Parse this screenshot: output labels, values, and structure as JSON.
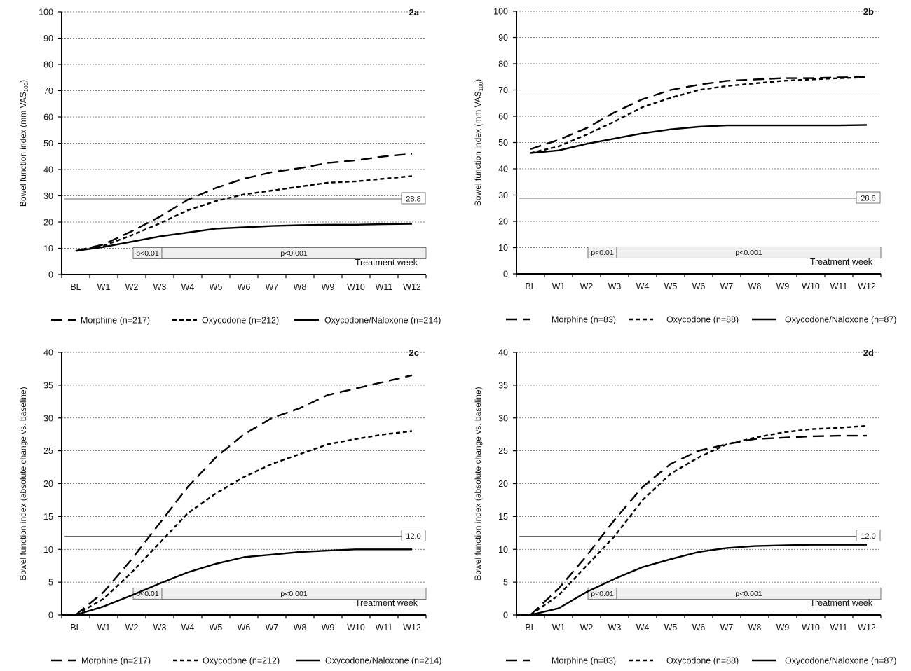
{
  "chart_data": [
    {
      "panel_label": "2a",
      "type": "line",
      "ylabel": "Bowel function index (mm VAS",
      "ylabel_sub": "100",
      "ylabel_suffix": ")",
      "xlabel": "Treatment week",
      "categories": [
        "BL",
        "W1",
        "W2",
        "W3",
        "W4",
        "W5",
        "W6",
        "W7",
        "W8",
        "W9",
        "W10",
        "W11",
        "W12"
      ],
      "ylim": [
        0,
        100
      ],
      "yticks": [
        0,
        10,
        20,
        30,
        40,
        50,
        60,
        70,
        80,
        90,
        100
      ],
      "grid": "horizontal dotted",
      "threshold": {
        "value": 28.8,
        "label": "28.8"
      },
      "pvalues": {
        "first": "p<0.01",
        "second": "p<0.001",
        "first_start": 2.0,
        "split": 3.0
      },
      "series": [
        {
          "name": "Morphine (n=217)",
          "style": "long-dash",
          "values": [
            9,
            11.5,
            16.5,
            22,
            28.5,
            33,
            36.5,
            39,
            40.5,
            42.5,
            43.5,
            45,
            46
          ]
        },
        {
          "name": "Oxycodone (n=212)",
          "style": "short-dash",
          "values": [
            9,
            11,
            15,
            19.5,
            24.5,
            28,
            30.5,
            32,
            33.5,
            35,
            35.5,
            36.5,
            37.5
          ]
        },
        {
          "name": "Oxycodone/Naloxone (n=214)",
          "style": "solid",
          "values": [
            9,
            10.5,
            12.5,
            14.5,
            16,
            17.5,
            18,
            18.5,
            18.8,
            19,
            19,
            19.2,
            19.3
          ]
        }
      ]
    },
    {
      "panel_label": "2b",
      "type": "line",
      "ylabel": "Bowel function index (mm VAS",
      "ylabel_sub": "100",
      "ylabel_suffix": ")",
      "xlabel": "Treatment week",
      "categories": [
        "BL",
        "W1",
        "W2",
        "W3",
        "W4",
        "W5",
        "W6",
        "W7",
        "W8",
        "W9",
        "W10",
        "W11",
        "W12"
      ],
      "ylim": [
        0,
        100
      ],
      "yticks": [
        0,
        10,
        20,
        30,
        40,
        50,
        60,
        70,
        80,
        90,
        100
      ],
      "grid": "horizontal dotted",
      "threshold": {
        "value": 28.8,
        "label": "28.8"
      },
      "pvalues": {
        "first": "p<0.01",
        "second": "p<0.001",
        "first_start": 2.0,
        "split": 3.0
      },
      "series": [
        {
          "name": "Morphine (n=83)",
          "style": "long-dash",
          "values": [
            47.5,
            51,
            55.5,
            61.5,
            66.5,
            70,
            72,
            73.5,
            74,
            74.5,
            74.5,
            74.8,
            75
          ]
        },
        {
          "name": "Oxycodone (n=88)",
          "style": "short-dash",
          "values": [
            46,
            48.5,
            53,
            58,
            63.5,
            67,
            70,
            71.5,
            72.5,
            73.5,
            74,
            74.5,
            74.8
          ]
        },
        {
          "name": "Oxycodone/Naloxone (n=87)",
          "style": "solid",
          "values": [
            46,
            47,
            49.5,
            51.5,
            53.5,
            55,
            56,
            56.5,
            56.5,
            56.5,
            56.5,
            56.5,
            56.7
          ]
        }
      ]
    },
    {
      "panel_label": "2c",
      "type": "line",
      "ylabel": "Bowel function index (absolute change vs. baseline)",
      "xlabel": "Treatment week",
      "categories": [
        "BL",
        "W1",
        "W2",
        "W3",
        "W4",
        "W5",
        "W6",
        "W7",
        "W8",
        "W9",
        "W10",
        "W11",
        "W12"
      ],
      "ylim": [
        0,
        40
      ],
      "yticks": [
        0,
        5,
        10,
        15,
        20,
        25,
        30,
        35,
        40
      ],
      "grid": "horizontal dotted",
      "threshold": {
        "value": 12.0,
        "label": "12.0"
      },
      "pvalues": {
        "first": "p<0.01",
        "second": "p<0.001",
        "first_start": 2.0,
        "split": 3.0
      },
      "series": [
        {
          "name": "Morphine (n=217)",
          "style": "long-dash",
          "values": [
            0,
            3.5,
            8.5,
            14,
            19.5,
            24,
            27.5,
            30,
            31.5,
            33.5,
            34.5,
            35.5,
            36.5
          ]
        },
        {
          "name": "Oxycodone (n=212)",
          "style": "short-dash",
          "values": [
            0,
            2.5,
            6.5,
            11,
            15.5,
            18.5,
            21,
            23,
            24.5,
            26,
            26.8,
            27.5,
            28
          ]
        },
        {
          "name": "Oxycodone/Naloxone (n=214)",
          "style": "solid",
          "values": [
            0,
            1.3,
            3,
            4.8,
            6.5,
            7.8,
            8.8,
            9.2,
            9.6,
            9.8,
            10,
            10,
            10
          ]
        }
      ]
    },
    {
      "panel_label": "2d",
      "type": "line",
      "ylabel": "Bowel function index (absolute change vs. baseline)",
      "xlabel": "Treatment week",
      "categories": [
        "BL",
        "W1",
        "W2",
        "W3",
        "W4",
        "W5",
        "W6",
        "W7",
        "W8",
        "W9",
        "W10",
        "W11",
        "W12"
      ],
      "ylim": [
        0,
        40
      ],
      "yticks": [
        0,
        5,
        10,
        15,
        20,
        25,
        30,
        35,
        40
      ],
      "grid": "horizontal dotted",
      "threshold": {
        "value": 12.0,
        "label": "12.0"
      },
      "pvalues": {
        "first": "p<0.01",
        "second": "p<0.001",
        "first_start": 2.0,
        "split": 3.0
      },
      "series": [
        {
          "name": "Morphine (n=83)",
          "style": "long-dash",
          "values": [
            0,
            4,
            9,
            14.5,
            19.5,
            23,
            25,
            26,
            26.8,
            27,
            27.2,
            27.3,
            27.3
          ]
        },
        {
          "name": "Oxycodone (n=88)",
          "style": "short-dash",
          "values": [
            0,
            3,
            7.5,
            12,
            17.5,
            21.5,
            24,
            26,
            27,
            27.8,
            28.3,
            28.5,
            28.8
          ]
        },
        {
          "name": "Oxycodone/Naloxone (n=87)",
          "style": "solid",
          "values": [
            0,
            1,
            3.5,
            5.5,
            7.3,
            8.5,
            9.6,
            10.2,
            10.5,
            10.6,
            10.7,
            10.7,
            10.7
          ]
        }
      ]
    }
  ]
}
